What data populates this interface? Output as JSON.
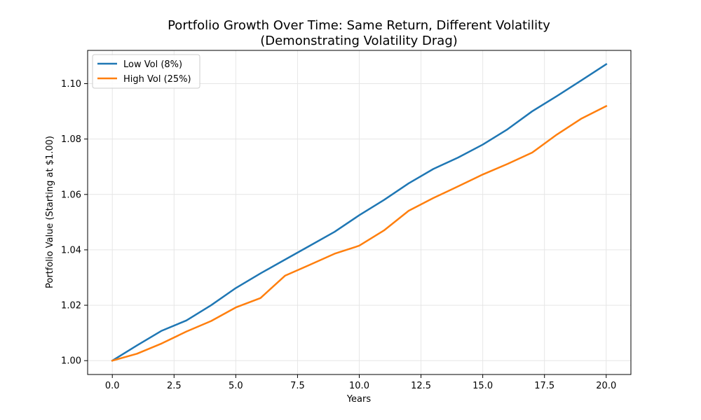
{
  "chart_data": {
    "type": "line",
    "title": "Portfolio Growth Over Time: Same Return, Different Volatility",
    "subtitle": "(Demonstrating Volatility Drag)",
    "xlabel": "Years",
    "ylabel": "Portfolio Value (Starting at $1.00)",
    "xlim": [
      -1,
      21
    ],
    "ylim": [
      0.995,
      1.112
    ],
    "xticks": [
      0,
      2.5,
      5,
      7.5,
      10,
      12.5,
      15,
      17.5,
      20
    ],
    "xtick_labels": [
      "0.0",
      "2.5",
      "5.0",
      "7.5",
      "10.0",
      "12.5",
      "15.0",
      "17.5",
      "20.0"
    ],
    "yticks": [
      1.0,
      1.02,
      1.04,
      1.06,
      1.08,
      1.1
    ],
    "ytick_labels": [
      "1.00",
      "1.02",
      "1.04",
      "1.06",
      "1.08",
      "1.10"
    ],
    "grid": true,
    "legend_position": "top-left",
    "x": [
      0,
      1,
      2,
      3,
      4,
      5,
      6,
      7,
      8,
      9,
      10,
      11,
      12,
      13,
      14,
      15,
      16,
      17,
      18,
      19,
      20
    ],
    "series": [
      {
        "name": "Low Vol (8%)",
        "color": "#1f77b4",
        "values": [
          1.0,
          1.0055,
          1.0108,
          1.0145,
          1.02,
          1.0262,
          1.0315,
          1.0365,
          1.0415,
          1.0465,
          1.0525,
          1.058,
          1.064,
          1.0692,
          1.0733,
          1.078,
          1.0835,
          1.09,
          1.0955,
          1.1012,
          1.107
        ]
      },
      {
        "name": "High Vol (25%)",
        "color": "#ff7f0e",
        "values": [
          1.0,
          1.0025,
          1.0062,
          1.0105,
          1.0143,
          1.0192,
          1.0226,
          1.0307,
          1.0346,
          1.0386,
          1.0415,
          1.047,
          1.0541,
          1.0587,
          1.0629,
          1.0672,
          1.071,
          1.0751,
          1.0816,
          1.0874,
          1.0919
        ]
      }
    ]
  }
}
